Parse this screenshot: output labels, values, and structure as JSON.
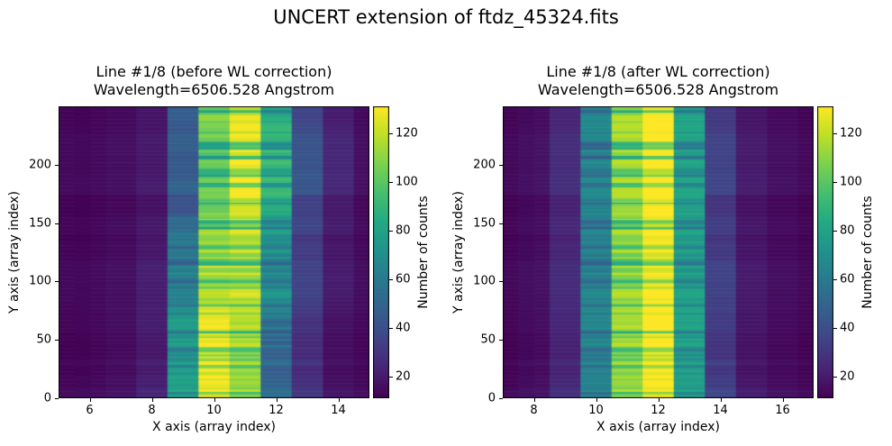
{
  "figure": {
    "suptitle": "UNCERT extension of ftdz_45324.fits",
    "background": "#ffffff",
    "text_color": "#000000"
  },
  "chart_data": [
    {
      "type": "heatmap",
      "panel": "before",
      "title_line1": "Line #1/8 (before WL correction)",
      "title_line2": "Wavelength=6506.528 Angstrom",
      "xlabel": "X axis (array index)",
      "ylabel": "Y axis (array index)",
      "x_extent": [
        5,
        15
      ],
      "y_extent": [
        0,
        250
      ],
      "x_ticks": [
        6,
        8,
        10,
        12,
        14
      ],
      "y_ticks": [
        0,
        50,
        100,
        150,
        200
      ],
      "grid": false,
      "colormap": "viridis",
      "vmin": 11,
      "vmax": 131,
      "colorbar": {
        "label": "Number of counts",
        "ticks": [
          20,
          40,
          60,
          80,
          100,
          120
        ]
      },
      "column_centers": [
        5,
        6,
        7,
        8,
        9,
        10,
        11,
        12,
        13,
        14,
        15
      ],
      "column_values": [
        13,
        14,
        16,
        22,
        78,
        126,
        108,
        48,
        27,
        16,
        14
      ],
      "rows": 250,
      "row_stripe_factor_range": [
        0.75,
        1.1
      ],
      "trace_drift_amplitude": 0.55,
      "seed": 11
    },
    {
      "type": "heatmap",
      "panel": "after",
      "title_line1": "Line #1/8 (after WL correction)",
      "title_line2": "Wavelength=6506.528 Angstrom",
      "xlabel": "X axis (array index)",
      "ylabel": "Y axis (array index)",
      "x_extent": [
        7,
        17
      ],
      "y_extent": [
        0,
        250
      ],
      "x_ticks": [
        8,
        10,
        12,
        14,
        16
      ],
      "y_ticks": [
        0,
        50,
        100,
        150,
        200
      ],
      "grid": false,
      "colormap": "viridis",
      "vmin": 11,
      "vmax": 131,
      "colorbar": {
        "label": "Number of counts",
        "ticks": [
          20,
          40,
          60,
          80,
          100,
          120
        ]
      },
      "column_centers": [
        7,
        8,
        9,
        10,
        11,
        12,
        13,
        14,
        15,
        16,
        17
      ],
      "column_values": [
        13,
        16,
        25,
        62,
        108,
        128,
        75,
        33,
        19,
        15,
        13
      ],
      "rows": 250,
      "row_stripe_factor_range": [
        0.75,
        1.1
      ],
      "trace_drift_amplitude": 0,
      "seed": 11
    }
  ]
}
